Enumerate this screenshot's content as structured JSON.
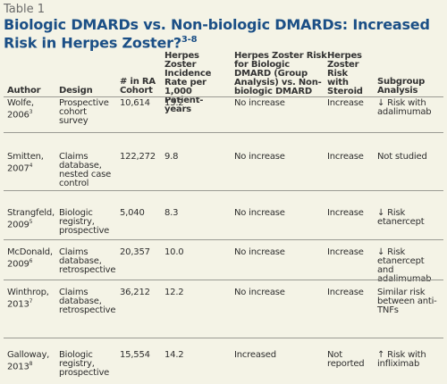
{
  "table_label": "Table 1",
  "title": "Biologic DMARDs vs. Non-biologic DMARDs: Increased Risk in Herpes Zoster?",
  "title_refs": "3-8",
  "headers": {
    "author": "Author",
    "design": "Design",
    "cohort": "# in RA Cohort",
    "incidence": "Herpes Zoster Incidence Rate per 1,000 Patient-years",
    "risk": "Herpes Zoster Risk for Biologic DMARD (Group Analysis) vs. Non-biologic DMARD",
    "steroid": "Herpes Zoster Risk with Steroid",
    "subgroup": "Subgroup Analysis"
  },
  "rows": [
    {
      "author": "Wolfe, 2006",
      "ref": "3",
      "design": "Prospective cohort survey",
      "cohort": "10,614",
      "incidence": "13.2",
      "risk": "No increase",
      "steroid": "Increase",
      "subgroup": "↓ Risk with adalimumab"
    },
    {
      "author": "Smitten, 2007",
      "ref": "4",
      "design": "Claims database, nested case control",
      "cohort": "122,272",
      "incidence": "9.8",
      "risk": "No increase",
      "steroid": "Increase",
      "subgroup": "Not studied"
    },
    {
      "author": "Strangfeld, 2009",
      "ref": "5",
      "design": "Biologic registry, prospective",
      "cohort": "5,040",
      "incidence": "8.3",
      "risk": "No increase",
      "steroid": "Increase",
      "subgroup": "↓ Risk etanercept"
    },
    {
      "author": "McDonald, 2009",
      "ref": "6",
      "design": "Claims database, retrospective",
      "cohort": "20,357",
      "incidence": "10.0",
      "risk": "No increase",
      "steroid": "Increase",
      "subgroup": "↓ Risk etanercept and adalimumab"
    },
    {
      "author": "Winthrop, 2013",
      "ref": "7",
      "design": "Claims database, retrospective",
      "cohort": "36,212",
      "incidence": "12.2",
      "risk": "No increase",
      "steroid": "Increase",
      "subgroup": "Similar risk between anti-TNFs"
    },
    {
      "author": "Galloway, 2013",
      "ref": "8",
      "design": "Biologic registry, prospective",
      "cohort": "15,554",
      "incidence": "14.2",
      "risk": "Increased",
      "steroid": "Not reported",
      "subgroup": "↑ Risk with infliximab"
    }
  ]
}
